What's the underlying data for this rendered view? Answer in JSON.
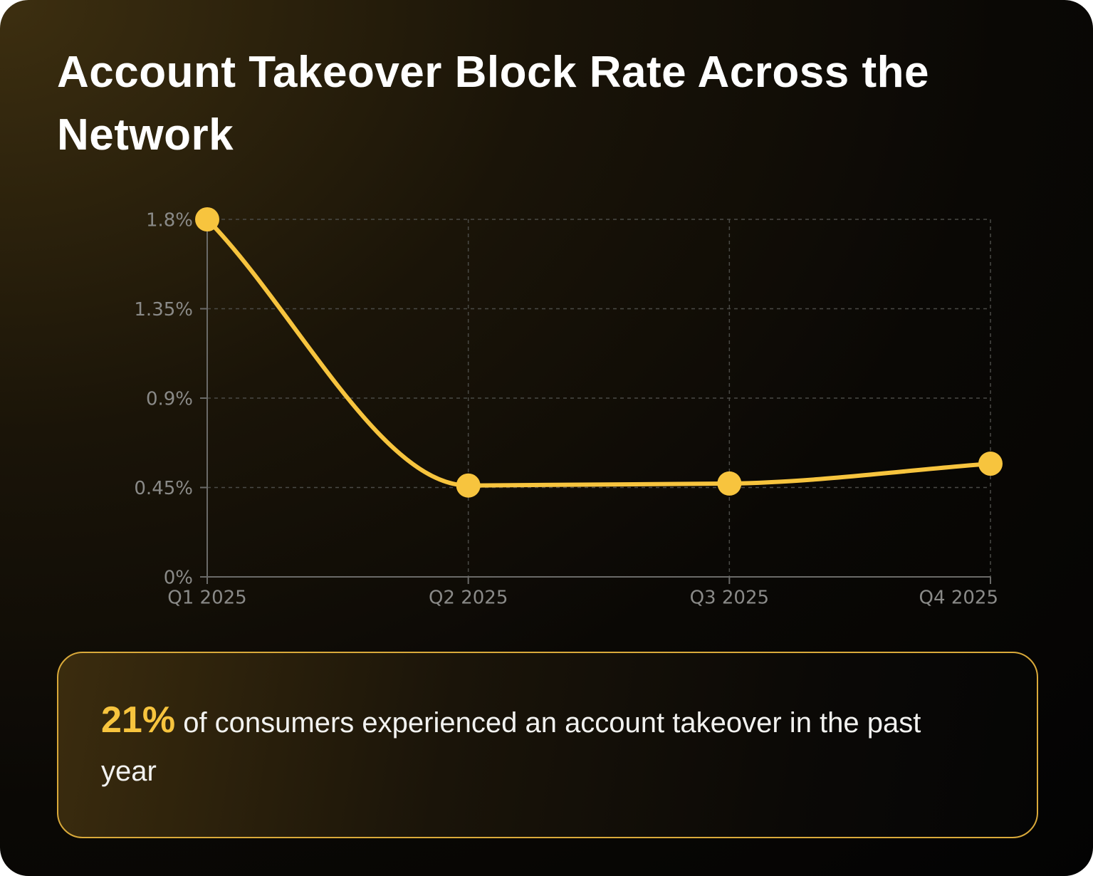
{
  "chart_data": {
    "type": "line",
    "title": "Account Takeover Block Rate Across the Network",
    "categories": [
      "Q1 2025",
      "Q2 2025",
      "Q3 2025",
      "Q4 2025"
    ],
    "values": [
      1.8,
      0.46,
      0.47,
      0.57
    ],
    "color": "#f7c43e",
    "ylim": [
      0,
      1.8
    ],
    "yticks": [
      {
        "value": 0,
        "label": "0%"
      },
      {
        "value": 0.45,
        "label": "0.45%"
      },
      {
        "value": 0.9,
        "label": "0.9%"
      },
      {
        "value": 1.35,
        "label": "1.35%"
      },
      {
        "value": 1.8,
        "label": "1.8%"
      }
    ],
    "grid": true
  },
  "callout": {
    "highlight": "21%",
    "text": "of consumers experienced an account takeover in the past year"
  }
}
